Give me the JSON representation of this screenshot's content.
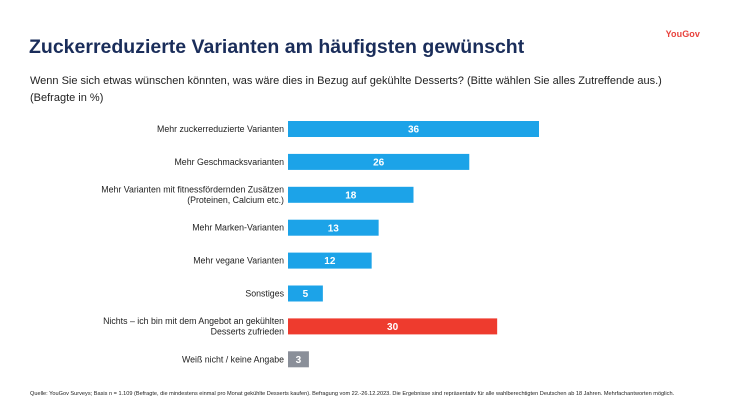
{
  "brand": "YouGov",
  "title": "Zuckerreduzierte Varianten am häufigsten gewünscht",
  "question": "Wenn Sie sich etwas wünschen könnten, was wäre dies in Bezug auf gekühlte Desserts? (Bitte wählen Sie alles Zutreffende aus.)",
  "unit_note": "(Befragte in %)",
  "source": "Quelle: YouGov Surveys; Basis n = 1.109 (Befragte, die mindestens einmal pro Monat gekühlte Desserts kaufen). Befragung vom 22.-26.12.2023. Die Ergebnisse sind repräsentativ für alle wahlberechtigten Deutschen ab 18 Jahren. Mehrfachantworten möglich.",
  "colors": {
    "primary": "#1ca3e8",
    "highlight": "#ee3b2e",
    "neutral": "#8a8f99",
    "title": "#1a2d5a",
    "brand": "#e8423d"
  },
  "chart_data": {
    "type": "bar",
    "orientation": "horizontal",
    "categories": [
      [
        "Mehr zuckerreduzierte Varianten"
      ],
      [
        "Mehr Geschmacksvarianten"
      ],
      [
        "Mehr Varianten mit fitnessfördernden Zusätzen",
        "(Proteinen, Calcium etc.)"
      ],
      [
        "Mehr Marken-Varianten"
      ],
      [
        "Mehr vegane Varianten"
      ],
      [
        "Sonstiges"
      ],
      [
        "Nichts – ich bin mit dem Angebot  an gekühlten",
        "Desserts zufrieden"
      ],
      [
        "Weiß nicht / keine Angabe"
      ]
    ],
    "values": [
      36,
      26,
      18,
      13,
      12,
      5,
      30,
      3
    ],
    "bar_colors": [
      "primary",
      "primary",
      "primary",
      "primary",
      "primary",
      "primary",
      "highlight",
      "neutral"
    ],
    "xlim": [
      0,
      36
    ],
    "grid": false,
    "legend": "none"
  }
}
